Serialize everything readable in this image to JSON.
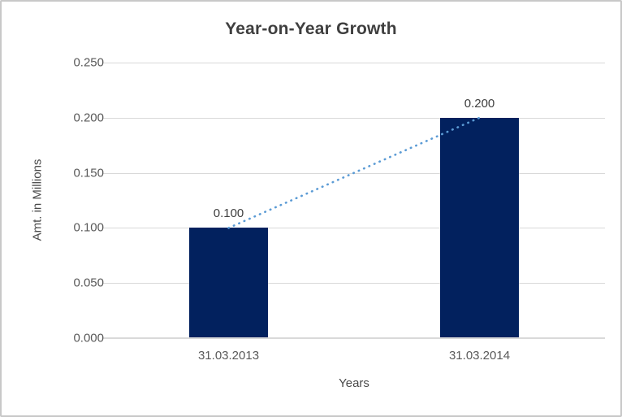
{
  "chart_data": {
    "type": "bar",
    "title": "Year-on-Year Growth",
    "xlabel": "Years",
    "ylabel": "Amt. in Millions",
    "categories": [
      "31.03.2013",
      "31.03.2014"
    ],
    "values": [
      0.1,
      0.2
    ],
    "data_labels": [
      "0.100",
      "0.200"
    ],
    "yticks": [
      "0.000",
      "0.050",
      "0.100",
      "0.150",
      "0.200",
      "0.250"
    ],
    "ylim": [
      0,
      0.25
    ],
    "ytick_step": 0.05,
    "grid": true,
    "legend": "none",
    "trendline": {
      "type": "linear",
      "style": "dotted",
      "color": "#5B9BD5",
      "from_value": 0.1,
      "to_value": 0.2
    },
    "colors": {
      "bar": "#02215E",
      "gridline": "#D9D9D9",
      "axis_line": "#D9D9D9",
      "title_text": "#3F3F3F",
      "axis_title_text": "#4A4A4A",
      "tick_text": "#595959",
      "data_label_text": "#404040",
      "border": "#C8C8C8",
      "background": "#FFFFFF"
    }
  }
}
